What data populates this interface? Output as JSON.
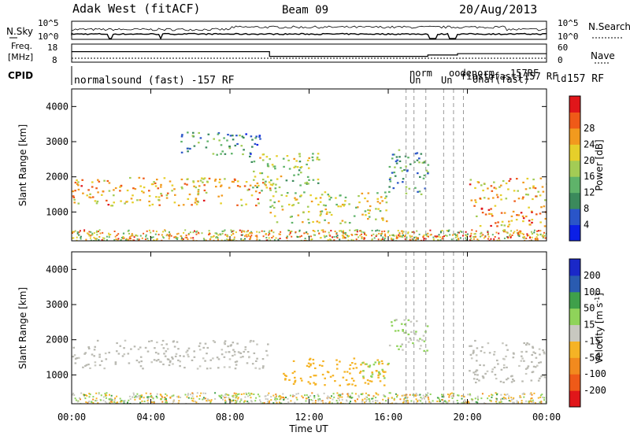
{
  "header": {
    "station": "Adak West (fitACF)",
    "beam": "Beam 09",
    "date": "20/Aug/2013"
  },
  "noise_panel": {
    "left_label": "N.Sky",
    "right_label": "N.Search",
    "left_ticks": [
      "10^5",
      "10^0"
    ],
    "right_ticks": [
      "10^5",
      "10^0"
    ]
  },
  "freq_panel": {
    "left_label_1": "Freq.",
    "left_label_2": "[MHz]",
    "right_label": "Nave",
    "left_ticks": [
      "18",
      "8"
    ],
    "right_ticks": [
      "60",
      "0"
    ]
  },
  "cpid": {
    "label": "CPID",
    "first_mode": "normalsound (fast) -157 RF",
    "late_fragments": [
      "norm",
      "Un",
      "Un",
      "oodenorm",
      "fiast",
      "Unaf(fast)",
      "ofast)",
      "157RF",
      "157 RF",
      "ld"
    ],
    "last_mode": "157 RF"
  },
  "colors": {
    "power": [
      "#0b1fe6",
      "#2a55c8",
      "#3b8a5c",
      "#5fb36a",
      "#a3cc55",
      "#e6cf2a",
      "#f29a1e",
      "#ef5a18",
      "#e0161a"
    ],
    "velocity": [
      "#e0161a",
      "#ef5a18",
      "#f28a1e",
      "#f5b325",
      "#c8c8c0",
      "#8fd35a",
      "#3fa04a",
      "#2a5bb0",
      "#1a28c8"
    ],
    "ground_scatter": "#b8b8b0"
  },
  "chart_data": [
    {
      "type": "heatmap",
      "title": "Power",
      "xlabel": "",
      "ylabel": "Slant Range [km]",
      "xlim": [
        "00:00",
        "00:00"
      ],
      "ylim": [
        180,
        4500
      ],
      "x_ticks": [
        "00:00",
        "04:00",
        "08:00",
        "12:00",
        "16:00",
        "20:00",
        "00:00"
      ],
      "y_ticks": [
        1000,
        2000,
        3000,
        4000
      ],
      "colorbar": {
        "label": "Power [dB]",
        "ticks": [
          4,
          8,
          12,
          16,
          20,
          24,
          28
        ],
        "range": [
          0,
          32
        ]
      },
      "regions": [
        {
          "t": [
            0.0,
            10.0
          ],
          "range_km": [
            1200,
            2000
          ],
          "value_db": 22
        },
        {
          "t": [
            10.0,
            16.0
          ],
          "range_km": [
            700,
            1600
          ],
          "value_db": 18
        },
        {
          "t": [
            9.0,
            12.5
          ],
          "range_km": [
            1600,
            2700
          ],
          "value_db": 16
        },
        {
          "t": [
            5.5,
            9.5
          ],
          "range_km": [
            2600,
            3300
          ],
          "value_db": 10
        },
        {
          "t": [
            16.0,
            18.0
          ],
          "range_km": [
            1500,
            2800
          ],
          "value_db": 10
        },
        {
          "t": [
            20.0,
            24.0
          ],
          "range_km": [
            1300,
            2000
          ],
          "value_db": 22
        },
        {
          "t": [
            20.0,
            24.0
          ],
          "range_km": [
            600,
            1200
          ],
          "value_db": 24
        }
      ]
    },
    {
      "type": "heatmap",
      "title": "Velocity",
      "xlabel": "Time UT",
      "ylabel": "Slant Range [km]",
      "xlim": [
        "00:00",
        "00:00"
      ],
      "ylim": [
        180,
        4500
      ],
      "x_ticks": [
        "00:00",
        "04:00",
        "08:00",
        "12:00",
        "16:00",
        "20:00",
        "00:00"
      ],
      "y_ticks": [
        1000,
        2000,
        3000,
        4000
      ],
      "colorbar": {
        "label": "Velocity [m s^-1]",
        "ticks": [
          200,
          100,
          50,
          15,
          -15,
          -50,
          -100,
          -200
        ],
        "range": [
          -250,
          250
        ]
      },
      "regions": [
        {
          "t": [
            0.0,
            10.0
          ],
          "range_km": [
            1200,
            2000
          ],
          "value_ms": 0
        },
        {
          "t": [
            10.5,
            16.0
          ],
          "range_km": [
            700,
            1500
          ],
          "value_ms": -60
        },
        {
          "t": [
            14.5,
            16.0
          ],
          "range_km": [
            900,
            1400
          ],
          "value_ms": 40
        },
        {
          "t": [
            16.0,
            18.0
          ],
          "range_km": [
            1600,
            2600
          ],
          "value_ms": 30
        },
        {
          "t": [
            20.0,
            24.0
          ],
          "range_km": [
            800,
            2000
          ],
          "value_ms": 0
        }
      ]
    }
  ]
}
